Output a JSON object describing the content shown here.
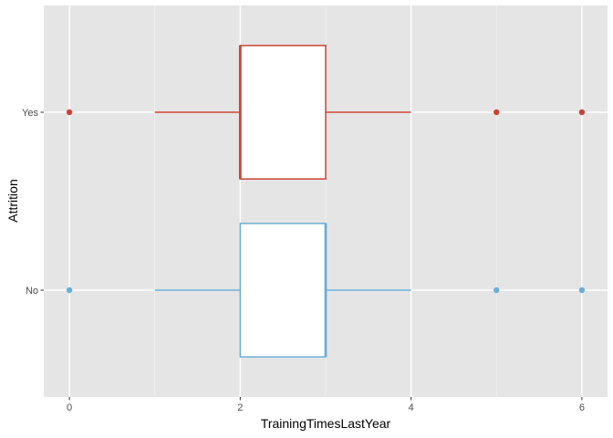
{
  "chart_data": {
    "type": "boxplot",
    "orientation": "horizontal",
    "xlabel": "TrainingTimesLastYear",
    "ylabel": "Attrition",
    "xlim": [
      -0.3,
      6.3
    ],
    "x_ticks": [
      0,
      2,
      4,
      6
    ],
    "x_tick_labels": [
      "0",
      "2",
      "4",
      "6"
    ],
    "categories": [
      "No",
      "Yes"
    ],
    "grid": true,
    "series": [
      {
        "name": "No",
        "color": "#6baed6",
        "whisker_low": 1,
        "q1": 2,
        "median": 3,
        "q3": 3,
        "whisker_high": 4,
        "outliers": [
          0,
          5,
          6
        ]
      },
      {
        "name": "Yes",
        "color": "#cb4335",
        "whisker_low": 1,
        "q1": 2,
        "median": 2,
        "q3": 3,
        "whisker_high": 4,
        "outliers": [
          0,
          5,
          6
        ]
      }
    ]
  }
}
